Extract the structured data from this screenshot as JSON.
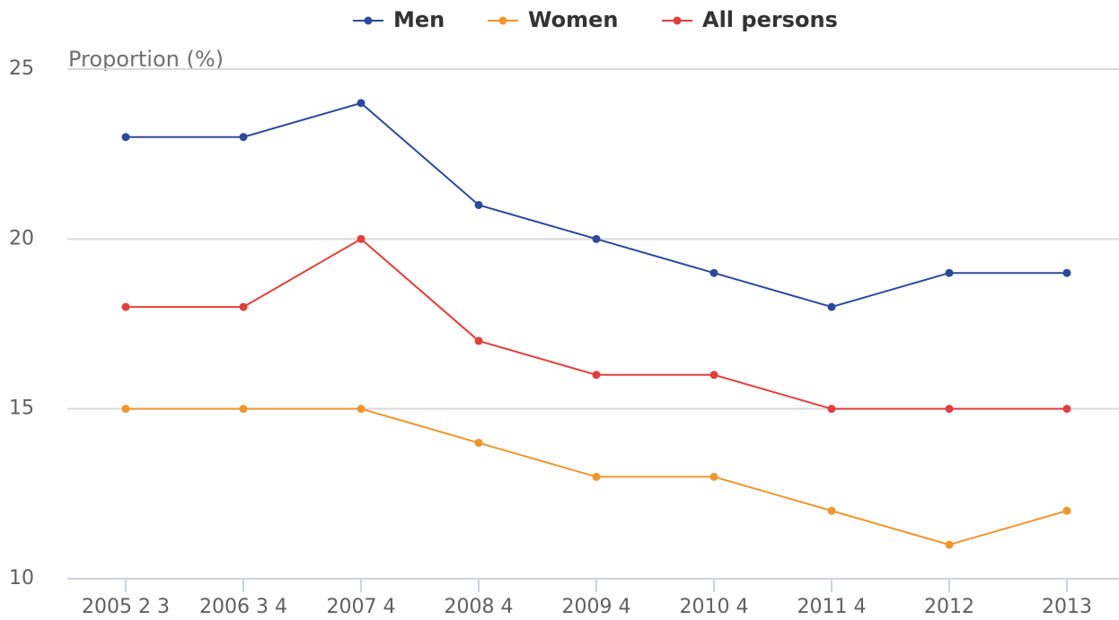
{
  "chart_data": {
    "type": "line",
    "y_label": "Proportion (%)",
    "categories": [
      "2005 2 3",
      "2006 3 4",
      "2007 4",
      "2008 4",
      "2009 4",
      "2010 4",
      "2011 4",
      "2012",
      "2013"
    ],
    "series": [
      {
        "name": "Men",
        "color": "#2b4a9b",
        "values": [
          23,
          23,
          24,
          21,
          20,
          19,
          18,
          19,
          19
        ]
      },
      {
        "name": "Women",
        "color": "#f0962e",
        "values": [
          15,
          15,
          15,
          14,
          13,
          13,
          12,
          11,
          12
        ]
      },
      {
        "name": "All persons",
        "color": "#e0403d",
        "values": [
          18,
          18,
          20,
          17,
          16,
          16,
          15,
          15,
          15
        ]
      }
    ],
    "ylim": [
      10,
      25
    ],
    "yticks": [
      10,
      15,
      20,
      25
    ],
    "grid": true,
    "legend": "top"
  }
}
